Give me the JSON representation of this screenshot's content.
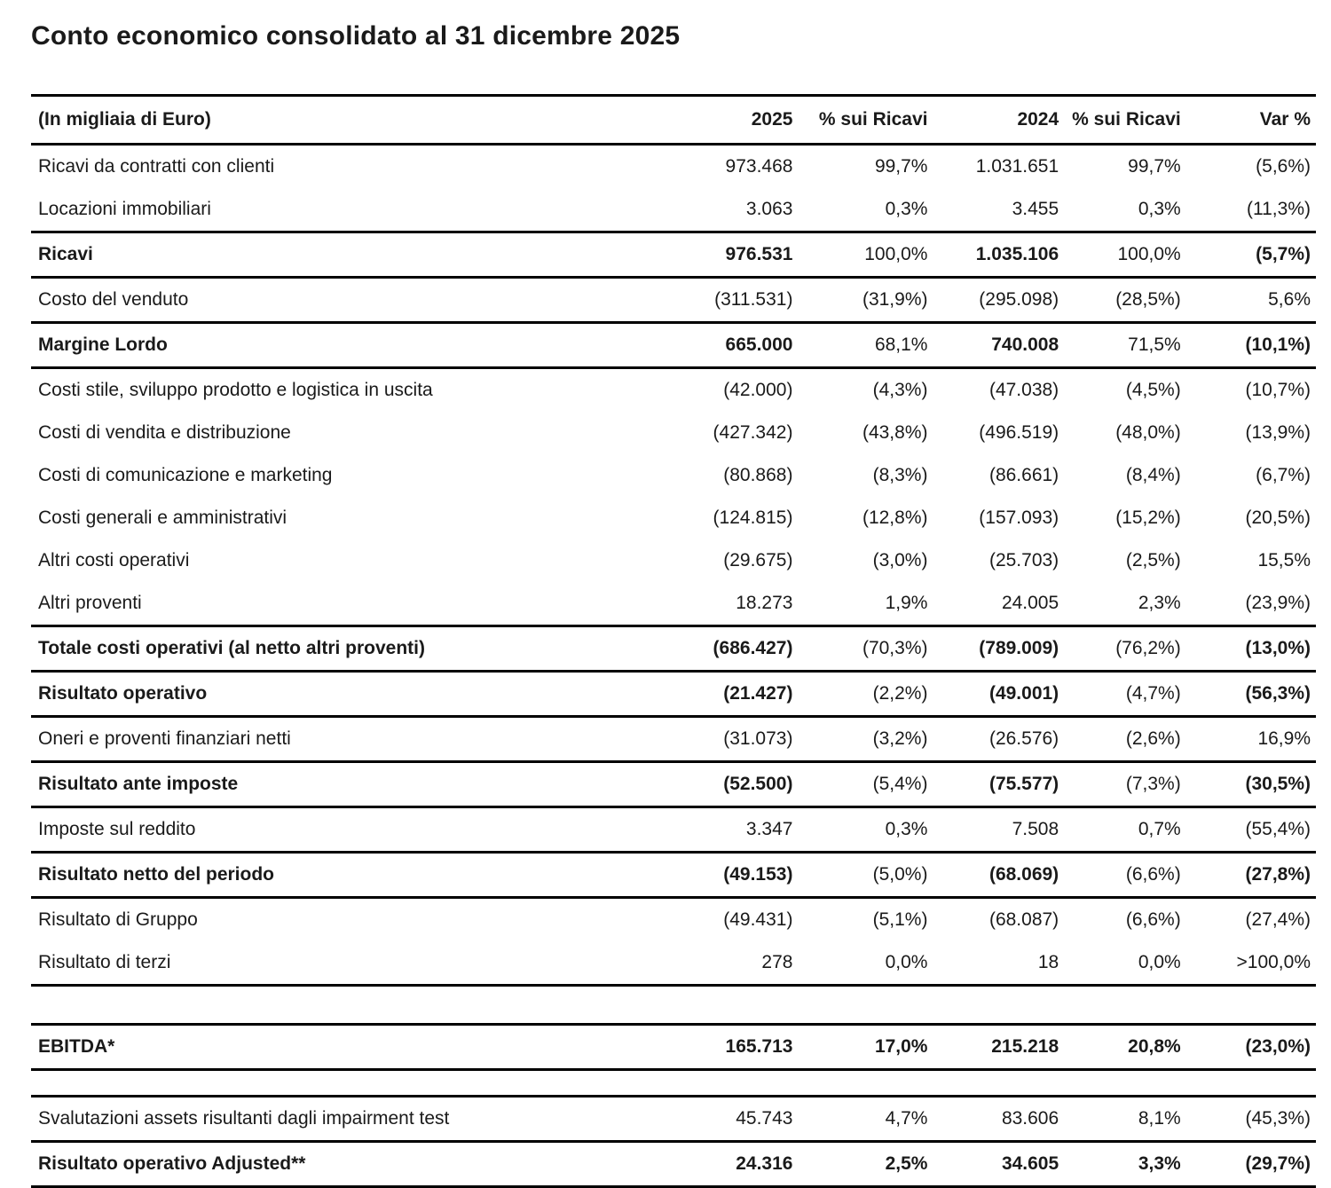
{
  "page": {
    "title": "Conto economico consolidato al 31 dicembre 2025"
  },
  "table": {
    "unit_label": "(In migliaia di Euro)",
    "columns": [
      "2025",
      "% sui Ricavi",
      "2024",
      "% sui Ricavi",
      "Var %"
    ],
    "column_keys": [
      "value-2025",
      "pct-ricavi-2025",
      "value-2024",
      "pct-ricavi-2024",
      "var-pct"
    ],
    "rows": [
      {
        "label": "Ricavi da contratti con clienti",
        "emphasis": "none",
        "values": [
          "973.468",
          "99,7%",
          "1.031.651",
          "99,7%",
          "(5,6%)"
        ],
        "rule_below": false
      },
      {
        "label": "Locazioni immobiliari",
        "emphasis": "none",
        "values": [
          "3.063",
          "0,3%",
          "3.455",
          "0,3%",
          "(11,3%)"
        ],
        "rule_below": true
      },
      {
        "label": "Ricavi",
        "emphasis": "subtotal",
        "values": [
          "976.531",
          "100,0%",
          "1.035.106",
          "100,0%",
          "(5,7%)"
        ],
        "rule_below": true
      },
      {
        "label": "Costo del venduto",
        "emphasis": "none",
        "values": [
          "(311.531)",
          "(31,9%)",
          "(295.098)",
          "(28,5%)",
          "5,6%"
        ],
        "rule_below": true
      },
      {
        "label": "Margine Lordo",
        "emphasis": "subtotal",
        "values": [
          "665.000",
          "68,1%",
          "740.008",
          "71,5%",
          "(10,1%)"
        ],
        "rule_below": true
      },
      {
        "label": "Costi stile, sviluppo prodotto e logistica in uscita",
        "emphasis": "none",
        "values": [
          "(42.000)",
          "(4,3%)",
          "(47.038)",
          "(4,5%)",
          "(10,7%)"
        ],
        "rule_below": false
      },
      {
        "label": "Costi di vendita e distribuzione",
        "emphasis": "none",
        "values": [
          "(427.342)",
          "(43,8%)",
          "(496.519)",
          "(48,0%)",
          "(13,9%)"
        ],
        "rule_below": false
      },
      {
        "label": "Costi di comunicazione e marketing",
        "emphasis": "none",
        "values": [
          "(80.868)",
          "(8,3%)",
          "(86.661)",
          "(8,4%)",
          "(6,7%)"
        ],
        "rule_below": false
      },
      {
        "label": "Costi generali e amministrativi",
        "emphasis": "none",
        "values": [
          "(124.815)",
          "(12,8%)",
          "(157.093)",
          "(15,2%)",
          "(20,5%)"
        ],
        "rule_below": false
      },
      {
        "label": "Altri costi operativi",
        "emphasis": "none",
        "values": [
          "(29.675)",
          "(3,0%)",
          "(25.703)",
          "(2,5%)",
          "15,5%"
        ],
        "rule_below": false
      },
      {
        "label": "Altri proventi",
        "emphasis": "none",
        "values": [
          "18.273",
          "1,9%",
          "24.005",
          "2,3%",
          "(23,9%)"
        ],
        "rule_below": true
      },
      {
        "label": "Totale costi operativi (al netto altri proventi)",
        "emphasis": "subtotal",
        "values": [
          "(686.427)",
          "(70,3%)",
          "(789.009)",
          "(76,2%)",
          "(13,0%)"
        ],
        "rule_below": true
      },
      {
        "label": "Risultato operativo",
        "emphasis": "subtotal",
        "values": [
          "(21.427)",
          "(2,2%)",
          "(49.001)",
          "(4,7%)",
          "(56,3%)"
        ],
        "rule_below": true
      },
      {
        "label": "Oneri e proventi finanziari netti",
        "emphasis": "none",
        "values": [
          "(31.073)",
          "(3,2%)",
          "(26.576)",
          "(2,6%)",
          "16,9%"
        ],
        "rule_below": true
      },
      {
        "label": "Risultato ante imposte",
        "emphasis": "subtotal",
        "values": [
          "(52.500)",
          "(5,4%)",
          "(75.577)",
          "(7,3%)",
          "(30,5%)"
        ],
        "rule_below": true
      },
      {
        "label": "Imposte sul reddito",
        "emphasis": "none",
        "values": [
          "3.347",
          "0,3%",
          "7.508",
          "0,7%",
          "(55,4%)"
        ],
        "rule_below": true
      },
      {
        "label": "Risultato netto del periodo",
        "emphasis": "subtotal",
        "values": [
          "(49.153)",
          "(5,0%)",
          "(68.069)",
          "(6,6%)",
          "(27,8%)"
        ],
        "rule_below": true
      },
      {
        "label": "Risultato di Gruppo",
        "emphasis": "none",
        "values": [
          "(49.431)",
          "(5,1%)",
          "(68.087)",
          "(6,6%)",
          "(27,4%)"
        ],
        "rule_below": false
      },
      {
        "label": "Risultato di terzi",
        "emphasis": "none",
        "values": [
          "278",
          "0,0%",
          "18",
          "0,0%",
          ">100,0%"
        ],
        "rule_below": true
      },
      {
        "label": "EBITDA*",
        "emphasis": "total",
        "values": [
          "165.713",
          "17,0%",
          "215.218",
          "20,8%",
          "(23,0%)"
        ],
        "rule_below": true,
        "spacer_before": "large"
      },
      {
        "label": "Svalutazioni assets risultanti dagli impairment test",
        "emphasis": "none",
        "values": [
          "45.743",
          "4,7%",
          "83.606",
          "8,1%",
          "(45,3%)"
        ],
        "rule_below": true,
        "spacer_before": "small"
      },
      {
        "label": "Risultato operativo Adjusted**",
        "emphasis": "total",
        "values": [
          "24.316",
          "2,5%",
          "34.605",
          "3,3%",
          "(29,7%)"
        ],
        "rule_below": true
      }
    ]
  }
}
